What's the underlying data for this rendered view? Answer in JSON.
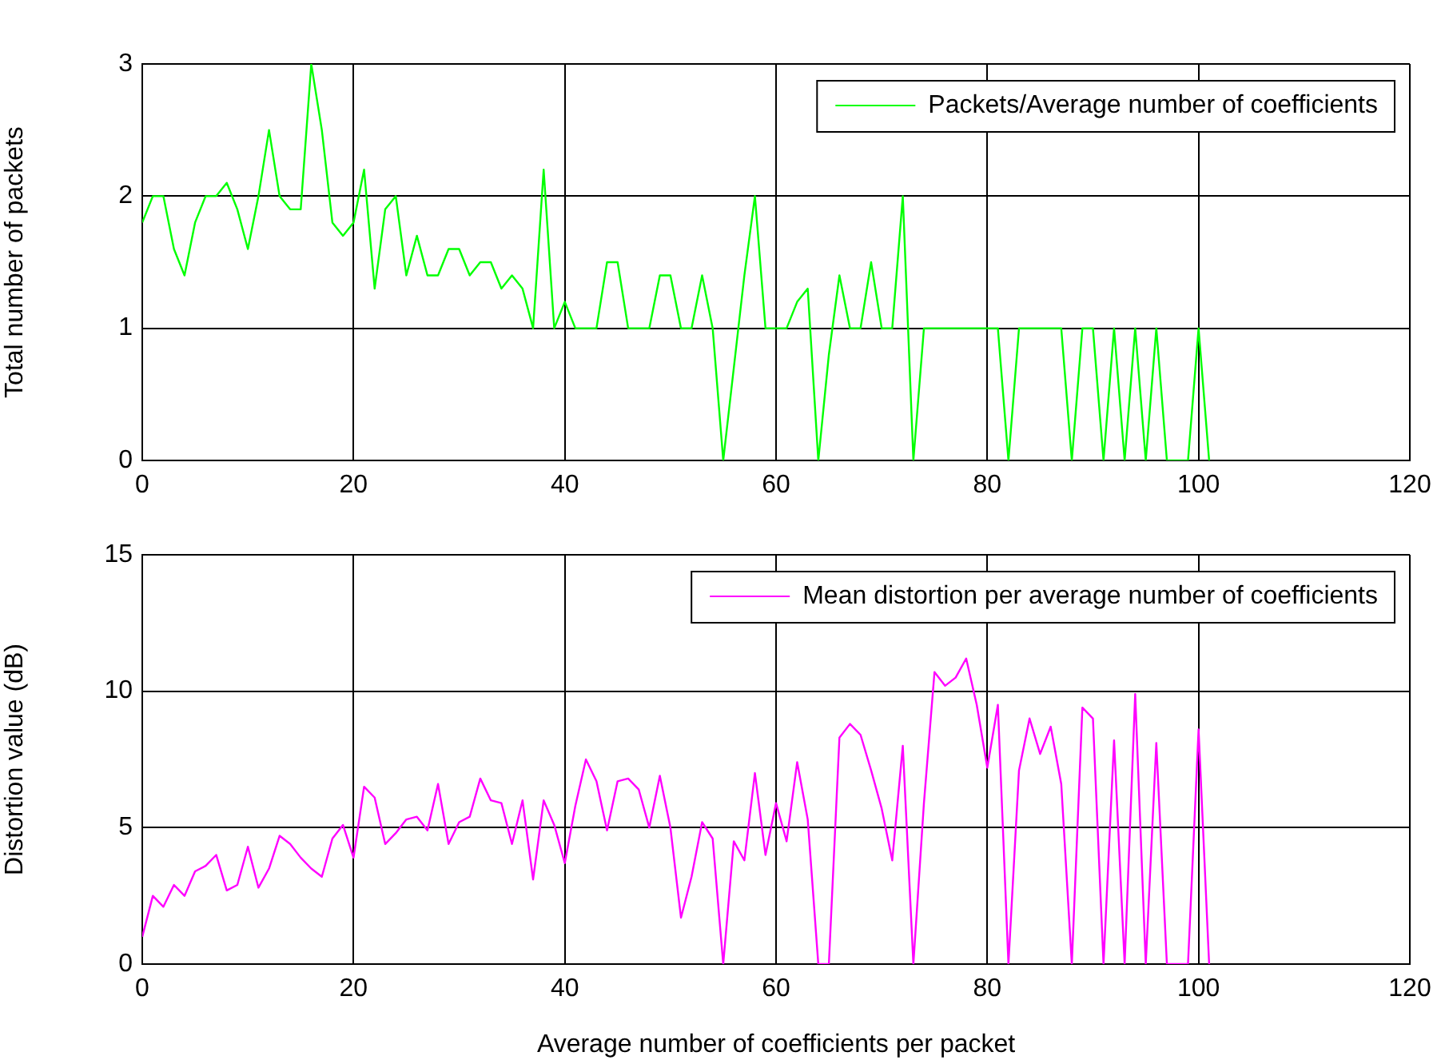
{
  "chart_data": [
    {
      "type": "line",
      "ylabel": "Total number of packets",
      "x": [
        0,
        1,
        2,
        3,
        4,
        5,
        6,
        7,
        8,
        9,
        10,
        11,
        12,
        13,
        14,
        15,
        16,
        17,
        18,
        19,
        20,
        21,
        22,
        23,
        24,
        25,
        26,
        27,
        28,
        29,
        30,
        31,
        32,
        33,
        34,
        35,
        36,
        37,
        38,
        39,
        40,
        41,
        42,
        43,
        44,
        45,
        46,
        47,
        48,
        49,
        50,
        51,
        52,
        53,
        54,
        55,
        56,
        57,
        58,
        59,
        60,
        61,
        62,
        63,
        64,
        65,
        66,
        67,
        68,
        69,
        70,
        71,
        72,
        73,
        74,
        75,
        76,
        77,
        78,
        79,
        80,
        81,
        82,
        83,
        84,
        85,
        86,
        87,
        88,
        89,
        90,
        91,
        92,
        93,
        94,
        95,
        96,
        97,
        98,
        99,
        100,
        101
      ],
      "series": [
        {
          "name": "Packets/Average number of coefficients",
          "color": "#00ff00",
          "values": [
            1.8,
            2,
            2,
            1.6,
            1.4,
            1.8,
            2,
            2,
            2.1,
            1.9,
            1.6,
            2,
            2.5,
            2,
            1.9,
            1.9,
            3,
            2.5,
            1.8,
            1.7,
            1.8,
            2.2,
            1.3,
            1.9,
            2,
            1.4,
            1.7,
            1.4,
            1.4,
            1.6,
            1.6,
            1.4,
            1.5,
            1.5,
            1.3,
            1.4,
            1.3,
            1,
            2.2,
            1,
            1.2,
            1,
            1,
            1,
            1.5,
            1.5,
            1,
            1,
            1,
            1.4,
            1.4,
            1,
            1,
            1.4,
            1,
            0,
            0.7,
            1.4,
            2,
            1,
            1,
            1,
            1.2,
            1.3,
            0,
            0.8,
            1.4,
            1,
            1,
            1.5,
            1,
            1,
            2,
            0,
            1,
            1,
            1,
            1,
            1,
            1,
            1,
            1,
            0,
            1,
            1,
            1,
            1,
            1,
            0,
            1,
            1,
            0,
            1,
            0,
            1,
            0,
            1,
            0,
            0,
            0,
            1,
            0
          ]
        }
      ],
      "xlim": [
        0,
        120
      ],
      "xticks": [
        0,
        20,
        40,
        60,
        80,
        100,
        120
      ],
      "ylim": [
        0,
        3
      ],
      "yticks": [
        0,
        1,
        2,
        3
      ],
      "grid": true,
      "legend": "top right",
      "marker": "none"
    },
    {
      "type": "line",
      "xlabel": "Average number of coefficients per packet",
      "ylabel": "Distortion value (dB)",
      "x": [
        0,
        1,
        2,
        3,
        4,
        5,
        6,
        7,
        8,
        9,
        10,
        11,
        12,
        13,
        14,
        15,
        16,
        17,
        18,
        19,
        20,
        21,
        22,
        23,
        24,
        25,
        26,
        27,
        28,
        29,
        30,
        31,
        32,
        33,
        34,
        35,
        36,
        37,
        38,
        39,
        40,
        41,
        42,
        43,
        44,
        45,
        46,
        47,
        48,
        49,
        50,
        51,
        52,
        53,
        54,
        55,
        56,
        57,
        58,
        59,
        60,
        61,
        62,
        63,
        64,
        65,
        66,
        67,
        68,
        69,
        70,
        71,
        72,
        73,
        74,
        75,
        76,
        77,
        78,
        79,
        80,
        81,
        82,
        83,
        84,
        85,
        86,
        87,
        88,
        89,
        90,
        91,
        92,
        93,
        94,
        95,
        96,
        97,
        98,
        99,
        100,
        101
      ],
      "series": [
        {
          "name": "Mean distortion per average number of coefficients",
          "color": "#ff00ff",
          "values": [
            1.0,
            2.5,
            2.1,
            2.9,
            2.5,
            3.4,
            3.6,
            4.0,
            2.7,
            2.9,
            4.3,
            2.8,
            3.5,
            4.7,
            4.4,
            3.9,
            3.5,
            3.2,
            4.6,
            5.1,
            3.9,
            6.5,
            6.1,
            4.4,
            4.8,
            5.3,
            5.4,
            4.9,
            6.6,
            4.4,
            5.2,
            5.4,
            6.8,
            6.0,
            5.9,
            4.4,
            6.0,
            3.1,
            6.0,
            5.1,
            3.7,
            5.8,
            7.5,
            6.7,
            4.9,
            6.7,
            6.8,
            6.4,
            5.0,
            6.9,
            5.0,
            1.7,
            3.2,
            5.2,
            4.6,
            0,
            4.5,
            3.8,
            7.0,
            4.0,
            5.9,
            4.5,
            7.4,
            5.3,
            0,
            0,
            8.3,
            8.8,
            8.4,
            7.1,
            5.7,
            3.8,
            8.0,
            0,
            5.9,
            10.7,
            10.2,
            10.5,
            11.2,
            9.5,
            7.2,
            9.5,
            0,
            7.1,
            9.0,
            7.7,
            8.7,
            6.6,
            0,
            9.4,
            9.0,
            0,
            8.2,
            0,
            9.9,
            0,
            8.1,
            0,
            0,
            0,
            8.6,
            0
          ]
        }
      ],
      "xlim": [
        0,
        120
      ],
      "xticks": [
        0,
        20,
        40,
        60,
        80,
        100,
        120
      ],
      "ylim": [
        0,
        15
      ],
      "yticks": [
        0,
        5,
        10,
        15
      ],
      "grid": true,
      "legend": "top right",
      "marker": "none"
    }
  ]
}
